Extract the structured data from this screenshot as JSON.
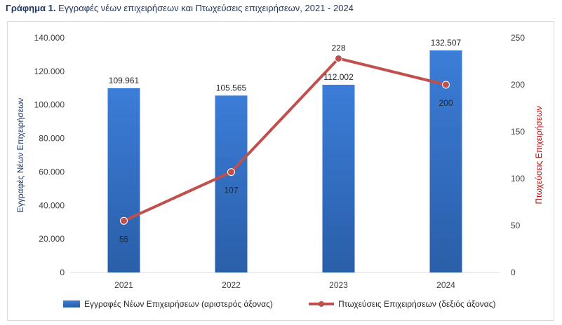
{
  "title": {
    "prefix": "Γράφημα 1.",
    "text": "Εγγραφές νέων επιχειρήσεων και Πτωχεύσεις επιχειρήσεων, 2021 - 2024"
  },
  "chart_data": {
    "type": "bar+line",
    "categories": [
      "2021",
      "2022",
      "2023",
      "2024"
    ],
    "series": [
      {
        "name": "Εγγραφές Νέων Επιχειρήσεων (αριστερός άξονας)",
        "type": "bar",
        "axis": "left",
        "values": [
          109961,
          105565,
          112002,
          132507
        ],
        "labels": [
          "109.961",
          "105.565",
          "112.002",
          "132.507"
        ],
        "color": "#2e6cc0"
      },
      {
        "name": "Πτωχεύσεις Επιχειρήσεων (δεξιός άξονας)",
        "type": "line",
        "axis": "right",
        "values": [
          55,
          107,
          228,
          200
        ],
        "labels": [
          "55",
          "107",
          "228",
          "200"
        ],
        "color": "#c0504d"
      }
    ],
    "y_left": {
      "label": "Εγγραφές Νέων Επιχειρήσεων",
      "range": [
        0,
        140000
      ],
      "ticks": [
        0,
        20000,
        40000,
        60000,
        80000,
        100000,
        120000,
        140000
      ],
      "tick_labels": [
        "0",
        "20.000",
        "40.000",
        "60.000",
        "80.000",
        "100.000",
        "120.000",
        "140.000"
      ]
    },
    "y_right": {
      "label": "Πτωχεύσεις Επιχειρήσεων",
      "range": [
        0,
        250
      ],
      "ticks": [
        0,
        50,
        100,
        150,
        200,
        250
      ],
      "tick_labels": [
        "0",
        "50",
        "100",
        "150",
        "200",
        "250"
      ]
    },
    "legend_position": "bottom",
    "grid": false
  }
}
